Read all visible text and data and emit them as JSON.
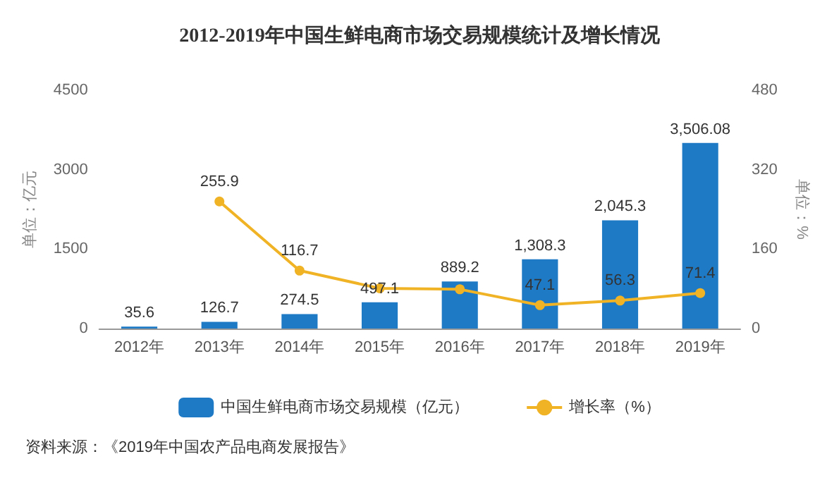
{
  "chart_data": {
    "type": "bar",
    "title": "2012-2019年中国生鲜电商市场交易规模统计及增长情况",
    "categories": [
      "2012年",
      "2013年",
      "2014年",
      "2015年",
      "2016年",
      "2017年",
      "2018年",
      "2019年"
    ],
    "series": [
      {
        "name": "中国生鲜电商市场交易规模（亿元）",
        "color": "#1f7ac6",
        "values": [
          35.6,
          126.7,
          274.5,
          497.1,
          889.2,
          1308.3,
          2045.3,
          3506.08
        ],
        "value_labels": [
          "35.6",
          "126.7",
          "274.5",
          "497.1",
          "889.2",
          "1,308.3",
          "2,045.3",
          "3,506.08"
        ]
      },
      {
        "name": "增长率（%）",
        "type": "line",
        "axis": "y2",
        "color": "#f0b326",
        "values": [
          null,
          255.9,
          116.7,
          81,
          79,
          47.1,
          56.3,
          71.4
        ],
        "value_labels": [
          null,
          "255.9",
          "116.7",
          null,
          null,
          "47.1",
          "56.3",
          "71.4"
        ]
      }
    ],
    "ylabel": "单位：亿元",
    "y2label": "单位：%",
    "ylim": [
      0,
      4500
    ],
    "yticks": [
      0,
      1500,
      3000,
      4500
    ],
    "y2lim": [
      0,
      480
    ],
    "y2ticks": [
      0,
      160,
      320,
      480
    ],
    "legend": "bottom",
    "marker": "circle",
    "annotations": [
      "资料来源：《2019年中国农产品电商发展报告》"
    ]
  }
}
